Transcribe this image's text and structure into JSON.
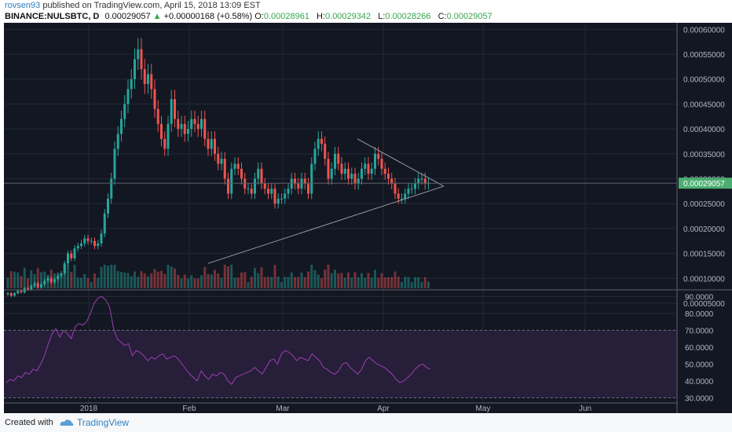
{
  "header": {
    "author": "rovsen93",
    "published_text": " published on TradingView.com, April 15, 2018 13:09 EST",
    "symbol": "BINANCE:NULSBTC, D",
    "last": "0.00029057",
    "change": "+0.00000168 (+0.58%)",
    "o_label": "O:",
    "o": "0.00028961",
    "h_label": "H:",
    "h": "0.00029342",
    "l_label": "L:",
    "l": "0.00028266",
    "c_label": "C:",
    "c": "0.00029057"
  },
  "footer": {
    "created_with": "Created with",
    "brand": "TradingView"
  },
  "colors": {
    "bg": "#131722",
    "up": "#26a69a",
    "down": "#ef5350",
    "rsi": "#9b3fb0",
    "price_badge": "#4caf72"
  },
  "chart_data": [
    {
      "type": "candlestick",
      "title": "BINANCE:NULSBTC, D",
      "price_label": "0.00029057",
      "ylim": [
        8e-05,
        0.00061
      ],
      "yticks": [
        "0.00060000",
        "0.00055000",
        "0.00050000",
        "0.00045000",
        "0.00040000",
        "0.00035000",
        "0.00030000",
        "0.00025000",
        "0.00020000",
        "0.00015000",
        "0.00010000",
        "0.00005000"
      ],
      "ytick_values": [
        0.0006,
        0.00055,
        0.0005,
        0.00045,
        0.0004,
        0.00035,
        0.0003,
        0.00025,
        0.0002,
        0.00015,
        0.0001,
        5e-05
      ],
      "xticks": [
        "2018",
        "Feb",
        "Mar",
        "Apr",
        "May",
        "Jun"
      ],
      "close": [
        7e-05,
        6.5e-05,
        7e-05,
        7.5e-05,
        7.2e-05,
        8e-05,
        7.8e-05,
        8.5e-05,
        9e-05,
        8.2e-05,
        8.8e-05,
        9.5e-05,
        0.0001,
        9.2e-05,
        9.8e-05,
        0.000105,
        0.00011,
        0.00013,
        0.00015,
        0.00014,
        0.00016,
        0.000165,
        0.00017,
        0.00018,
        0.000175,
        0.000175,
        0.000165,
        0.00017,
        0.00019,
        0.00023,
        0.00026,
        0.0003,
        0.00036,
        0.00039,
        0.00042,
        0.00045,
        0.00048,
        0.0005,
        0.00054,
        0.00056,
        0.00052,
        0.00049,
        0.00051,
        0.00048,
        0.00044,
        0.00041,
        0.00038,
        0.00036,
        0.00041,
        0.00046,
        0.00042,
        0.0004,
        0.00041,
        0.00039,
        0.0004,
        0.00042,
        0.00041,
        0.0004,
        0.00042,
        0.00038,
        0.00036,
        0.00038,
        0.00035,
        0.00033,
        0.00034,
        0.0003,
        0.00027,
        0.00032,
        0.00033,
        0.00032,
        0.0003,
        0.00028,
        0.00028,
        0.00027,
        0.0003,
        0.00032,
        0.00029,
        0.00028,
        0.00027,
        0.00028,
        0.00025,
        0.00026,
        0.00026,
        0.00027,
        0.00028,
        0.0003,
        0.00029,
        0.00028,
        0.0003,
        0.00029,
        0.00027,
        0.00033,
        0.00036,
        0.00038,
        0.00037,
        0.00034,
        0.0003,
        0.00032,
        0.00035,
        0.00033,
        0.00031,
        0.00032,
        0.0003,
        0.00031,
        0.00029,
        0.0003,
        0.00032,
        0.00033,
        0.00031,
        0.00032,
        0.00035,
        0.00034,
        0.00032,
        0.00031,
        0.0003,
        0.00029,
        0.00027,
        0.00026,
        0.00026,
        0.00027,
        0.00028,
        0.00028,
        0.00029,
        0.0003,
        0.0003,
        0.00029,
        0.000291
      ],
      "volume_note": "volume histogram below price",
      "trendlines": "symmetrical triangle"
    },
    {
      "type": "line",
      "name": "RSI",
      "ylim": [
        27,
        93
      ],
      "yticks": [
        "90.0000",
        "80.0000",
        "70.0000",
        "60.0000",
        "50.0000",
        "40.0000",
        "30.0000"
      ],
      "ytick_values": [
        90,
        80,
        70,
        60,
        50,
        40,
        30
      ],
      "bands": [
        70,
        30
      ],
      "values": [
        39,
        41,
        40,
        43,
        42,
        45,
        44,
        47,
        46,
        50,
        55,
        62,
        68,
        71,
        66,
        70,
        68,
        65,
        72,
        74,
        73,
        75,
        80,
        86,
        89,
        90,
        88,
        84,
        72,
        65,
        63,
        61,
        62,
        55,
        58,
        57,
        55,
        52,
        54,
        53,
        55,
        56,
        53,
        54,
        55,
        53,
        50,
        47,
        44,
        42,
        40,
        46,
        43,
        41,
        44,
        43,
        45,
        44,
        40,
        38,
        42,
        43,
        44,
        45,
        46,
        48,
        46,
        44,
        48,
        52,
        53,
        50,
        56,
        58,
        57,
        55,
        52,
        54,
        53,
        52,
        56,
        54,
        52,
        48,
        47,
        45,
        44,
        46,
        50,
        51,
        48,
        46,
        44,
        47,
        52,
        54,
        52,
        50,
        49,
        48,
        46,
        44,
        41,
        39,
        40,
        42,
        44,
        47,
        49,
        50,
        48,
        47
      ]
    }
  ]
}
